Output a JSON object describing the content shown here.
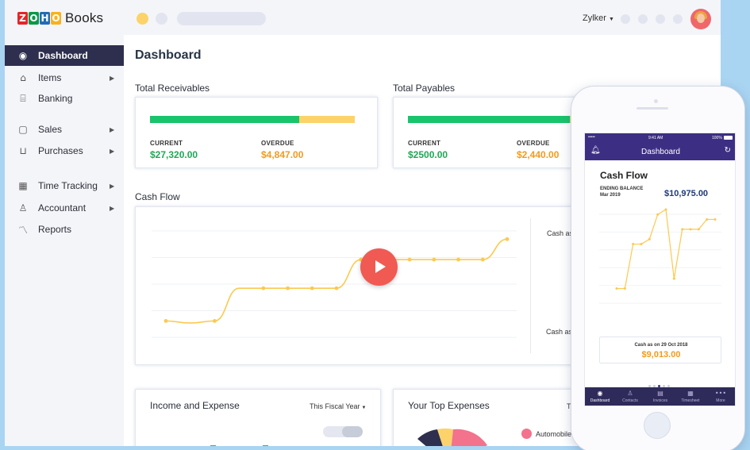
{
  "app": {
    "name": "Books",
    "logo_letters": [
      "Z",
      "O",
      "H",
      "O"
    ],
    "logo_colors": [
      "#e42527",
      "#089949",
      "#226db4",
      "#f9b21d"
    ]
  },
  "topbar": {
    "org_name": "Zylker"
  },
  "sidebar": {
    "items": [
      {
        "label": "Dashboard",
        "icon": "dashboard-icon",
        "active": true,
        "has_submenu": false
      },
      {
        "label": "Items",
        "icon": "basket-icon",
        "active": false,
        "has_submenu": true
      },
      {
        "label": "Banking",
        "icon": "bank-icon",
        "active": false,
        "has_submenu": false
      },
      {
        "label": "Sales",
        "icon": "bag-icon",
        "active": false,
        "has_submenu": true
      },
      {
        "label": "Purchases",
        "icon": "cart-icon",
        "active": false,
        "has_submenu": true
      },
      {
        "label": "Time Tracking",
        "icon": "calendar-icon",
        "active": false,
        "has_submenu": true
      },
      {
        "label": "Accountant",
        "icon": "person-icon",
        "active": false,
        "has_submenu": true
      },
      {
        "label": "Reports",
        "icon": "chart-line-icon",
        "active": false,
        "has_submenu": false
      }
    ]
  },
  "main": {
    "title": "Dashboard",
    "receivables": {
      "title": "Total Receivables",
      "current_label": "CURRENT",
      "current_value": "$27,320.00",
      "overdue_label": "OVERDUE",
      "overdue_value": "$4,847.00",
      "current_fraction": 0.73
    },
    "payables": {
      "title": "Total Payables",
      "current_label": "CURRENT",
      "current_value": "$2500.00",
      "overdue_label": "OVERDUE",
      "overdue_value": "$2,440.00",
      "current_fraction": 0.79
    },
    "cash_flow": {
      "title": "Cash Flow",
      "side_label_top": "Cash as o",
      "side_label_bottom": "Cash as o",
      "points": [
        4,
        3.5,
        4,
        12,
        12,
        12,
        12,
        12,
        19,
        19,
        19,
        19,
        19,
        19,
        24
      ]
    },
    "income_expense": {
      "title": "Income and Expense",
      "period": "This Fiscal Year"
    },
    "top_expenses": {
      "title": "Your Top Expenses",
      "legend_item": "Automobile E",
      "period_partial": "T"
    }
  },
  "colors": {
    "accent_dark": "#2e2e4e",
    "green": "#19c46c",
    "yellow": "#fcd36a",
    "orange": "#f39a1d",
    "play_red": "#f05a52",
    "mobile_purple": "#3c2f83"
  },
  "mobile": {
    "status_time": "9:41 AM",
    "status_battery": "100%",
    "status_signal": "•••••",
    "header_title": "Dashboard",
    "cash_flow_title": "Cash Flow",
    "ending_balance_label": "ENDING BALANCE",
    "ending_balance_date": "Mar 2019",
    "ending_balance_value": "$10,975.00",
    "cash_as_on": "Cash as on  29 Oct 2018",
    "cash_as_on_value": "$9,013.00",
    "line_points": [
      2,
      2,
      11,
      11,
      12,
      17,
      18,
      4,
      14,
      14,
      14,
      16,
      16
    ],
    "tabs": [
      {
        "label": "Dashboard",
        "icon": "dashboard-icon"
      },
      {
        "label": "Contacts",
        "icon": "contacts-icon"
      },
      {
        "label": "Invoices",
        "icon": "invoice-icon"
      },
      {
        "label": "Timesheet",
        "icon": "timesheet-icon"
      },
      {
        "label": "More",
        "icon": "more-icon"
      }
    ]
  }
}
